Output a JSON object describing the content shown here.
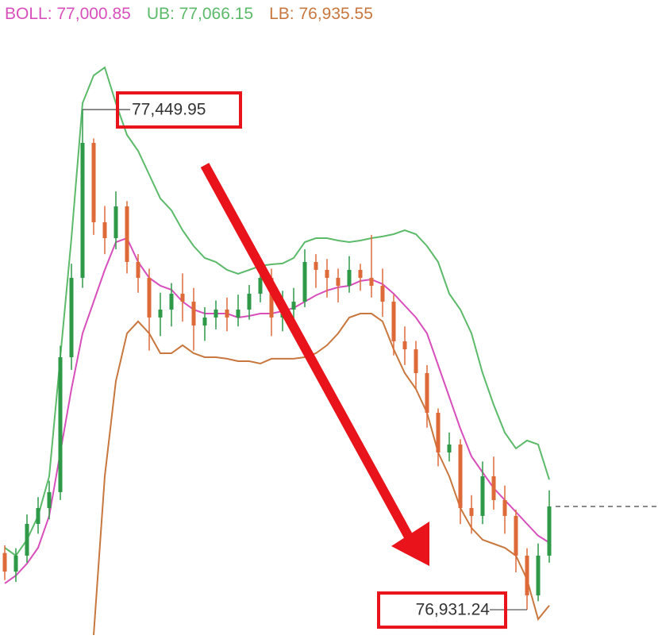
{
  "chart_data": {
    "type": "candlestick",
    "ylim": [
      76896.7,
      77563.6
    ],
    "up_color": "#2e9a48",
    "down_color": "#de6a3a",
    "open": [
      76990.0,
      76970.8,
      76987.3,
      77020.2,
      77036.7,
      77053.2,
      77193.1,
      77275.4,
      77415.4,
      77333.1,
      77316.6,
      77349.5,
      77291.9,
      77275.4,
      77234.3,
      77242.5,
      77259.0,
      77250.7,
      77226.0,
      77234.3,
      77242.5,
      77234.3,
      77242.5,
      77259.0,
      77275.4,
      77234.3,
      77242.5,
      77250.7,
      77291.9,
      77283.7,
      77275.4,
      77267.2,
      77283.7,
      77275.4,
      77267.2,
      77250.7,
      77209.6,
      77201.3,
      77176.6,
      77135.5,
      77094.3,
      77102.6,
      77036.7,
      77028.5,
      77069.6,
      77044.9,
      77028.5,
      76987.3,
      76946.1,
      76987.3
    ],
    "high": [
      76998,
      76995,
      77030,
      77048,
      77065,
      77205,
      77290,
      77449.95,
      77420,
      77350,
      77365,
      77355,
      77300,
      77285,
      77260,
      77270,
      77280,
      77265,
      77245,
      77252,
      77255,
      77258,
      77268,
      77295,
      77285,
      77262,
      77265,
      77305,
      77300,
      77295,
      77285,
      77298,
      77290,
      77320,
      77285,
      77258,
      77225,
      77210,
      77185,
      77140,
      77115,
      77108,
      77050,
      77085,
      77090,
      77060,
      77035,
      76995,
      77000,
      77055
    ],
    "high_labels": [
      null,
      null,
      null,
      null,
      null,
      null,
      null,
      "77,449.95",
      null,
      null,
      null,
      null,
      null,
      null,
      null,
      null,
      null,
      null,
      null,
      null,
      null,
      null,
      null,
      null,
      null,
      null,
      null,
      null,
      null,
      null,
      null,
      null,
      null,
      null,
      null,
      null,
      null,
      null,
      null,
      null,
      null,
      null,
      null,
      null,
      null,
      null,
      null,
      null,
      null,
      null
    ],
    "low": [
      76962,
      76960,
      76980,
      77010,
      77025,
      77045,
      77180,
      77265,
      77320,
      77300,
      77305,
      77280,
      77260,
      77200,
      77215,
      77225,
      77230,
      77200,
      77210,
      77222,
      77220,
      77225,
      77232,
      77250,
      77215,
      77220,
      77230,
      77245,
      77265,
      77255,
      77250,
      77260,
      77262,
      77255,
      77235,
      77195,
      77185,
      77160,
      77120,
      77080,
      77085,
      77020,
      77010,
      77020,
      77035,
      77010,
      76970,
      76931.24,
      76940,
      76980
    ],
    "low_labels": [
      null,
      null,
      null,
      null,
      null,
      null,
      null,
      null,
      null,
      null,
      null,
      null,
      null,
      null,
      null,
      null,
      null,
      null,
      null,
      null,
      null,
      null,
      null,
      null,
      null,
      null,
      null,
      null,
      null,
      null,
      null,
      null,
      null,
      null,
      null,
      null,
      null,
      null,
      null,
      null,
      null,
      null,
      null,
      null,
      null,
      null,
      null,
      "76,931.24",
      null,
      null
    ],
    "close": [
      76970.8,
      76987.3,
      77020.2,
      77036.7,
      77053.2,
      77193.1,
      77275.4,
      77415.4,
      77333.1,
      77316.6,
      77349.5,
      77291.9,
      77275.4,
      77234.3,
      77242.5,
      77259.0,
      77250.7,
      77226.0,
      77234.3,
      77242.5,
      77234.3,
      77242.5,
      77259.0,
      77275.4,
      77234.3,
      77242.5,
      77250.7,
      77291.9,
      77283.7,
      77275.4,
      77267.2,
      77283.7,
      77275.4,
      77267.2,
      77250.7,
      77209.6,
      77201.3,
      77176.6,
      77135.5,
      77094.3,
      77102.6,
      77036.7,
      77028.5,
      77069.6,
      77044.9,
      77028.5,
      76987.3,
      76946.1,
      76987.3,
      77038.3
    ],
    "series": [
      {
        "name": "BOLL",
        "color": "#d84fbc",
        "values": [
          76958.5,
          76966.7,
          76979.1,
          76995.5,
          77028.5,
          77094.3,
          77160.2,
          77217.8,
          77250.7,
          77283.7,
          77312.5,
          77316.6,
          77291.9,
          77275.4,
          77267.2,
          77263.1,
          77250.7,
          77242.5,
          77238.4,
          77238.4,
          77238.4,
          77234.3,
          77235.9,
          77238.4,
          77238.4,
          77240.9,
          77244.2,
          77250.7,
          77257.3,
          77262.3,
          77265.6,
          77267.2,
          77272.2,
          77273.8,
          77268.9,
          77259.0,
          77246.6,
          77234.3,
          77217.8,
          77184.9,
          77151.9,
          77119.0,
          77090.2,
          77073.7,
          77057.3,
          77044.9,
          77032.6,
          77020.2,
          77007.9,
          77000.85
        ],
        "value_labels": [
          null,
          null,
          null,
          null,
          null,
          null,
          null,
          null,
          null,
          null,
          null,
          null,
          null,
          null,
          null,
          null,
          null,
          null,
          null,
          null,
          null,
          null,
          null,
          null,
          null,
          null,
          null,
          null,
          null,
          null,
          null,
          null,
          null,
          null,
          null,
          null,
          null,
          null,
          null,
          null,
          null,
          null,
          null,
          null,
          null,
          null,
          null,
          null,
          null,
          "77,000.85"
        ]
      },
      {
        "name": "UB",
        "color": "#5cba6a",
        "values": [
          76995.5,
          76987.3,
          77003.8,
          77028.5,
          77069.6,
          77193.1,
          77316.6,
          77456.6,
          77485.4,
          77493.6,
          77456.6,
          77423.6,
          77407.2,
          77382.5,
          77357.8,
          77345.4,
          77324.8,
          77308.4,
          77296.0,
          77291.9,
          77283.7,
          77279.6,
          77283.7,
          77287.8,
          77289.4,
          77290.3,
          77296.0,
          77312.5,
          77316.6,
          77316.6,
          77314.1,
          77312.5,
          77314.1,
          77316.6,
          77318.3,
          77320.7,
          77324.8,
          77320.7,
          77308.4,
          77291.9,
          77259.0,
          77242.5,
          77217.8,
          77176.6,
          77143.7,
          77114.9,
          77098.5,
          77106.7,
          77102.6,
          77066.15
        ],
        "value_labels": [
          null,
          null,
          null,
          null,
          null,
          null,
          null,
          null,
          null,
          null,
          null,
          null,
          null,
          null,
          null,
          null,
          null,
          null,
          null,
          null,
          null,
          null,
          null,
          null,
          null,
          null,
          null,
          null,
          null,
          null,
          null,
          null,
          null,
          null,
          null,
          null,
          null,
          null,
          null,
          null,
          null,
          null,
          null,
          null,
          null,
          null,
          null,
          null,
          null,
          "77,066.15"
        ]
      },
      {
        "name": "LB",
        "color": "#c8773e",
        "values": [
          null,
          null,
          null,
          null,
          null,
          null,
          null,
          null,
          76905.0,
          77069.6,
          77168.4,
          77217.8,
          77230.2,
          77217.8,
          77197.2,
          77197.2,
          77205.5,
          77197.2,
          77193.1,
          77193.1,
          77191.5,
          77189.0,
          77189.0,
          77186.5,
          77191.5,
          77191.5,
          77191.5,
          77193.1,
          77197.2,
          77205.5,
          77217.8,
          77234.3,
          77238.4,
          77238.4,
          77230.2,
          77201.3,
          77176.6,
          77160.2,
          77135.5,
          77094.3,
          77069.6,
          77036.7,
          77016.1,
          77003.8,
          76999.6,
          76995.5,
          76987.3,
          76962.6,
          76921.4,
          76935.55
        ],
        "value_labels": [
          null,
          null,
          null,
          null,
          null,
          null,
          null,
          null,
          null,
          null,
          null,
          null,
          null,
          null,
          null,
          null,
          null,
          null,
          null,
          null,
          null,
          null,
          null,
          null,
          null,
          null,
          null,
          null,
          null,
          null,
          null,
          null,
          null,
          null,
          null,
          null,
          null,
          null,
          null,
          null,
          null,
          null,
          null,
          null,
          null,
          null,
          null,
          null,
          null,
          "76,935.55"
        ]
      }
    ]
  }
}
